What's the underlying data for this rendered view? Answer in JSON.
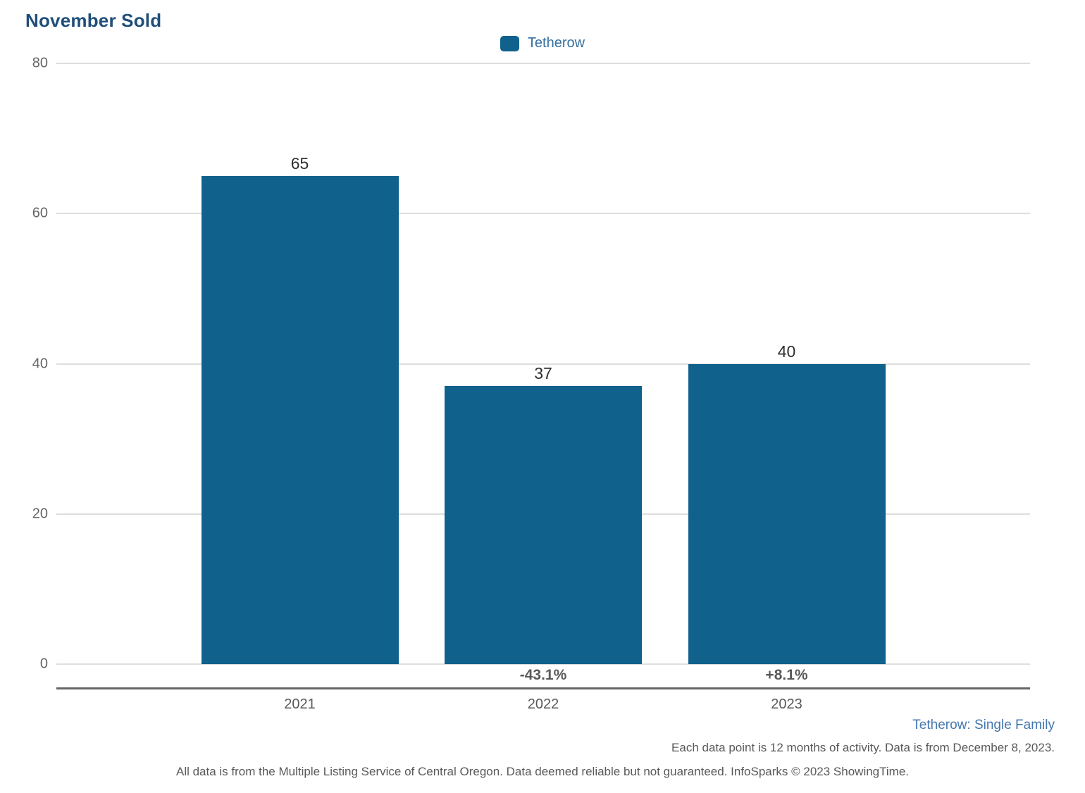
{
  "title": "November Sold",
  "legend": {
    "label": "Tetherow",
    "swatch_color": "#10618c"
  },
  "chart_data": {
    "type": "bar",
    "title": "November Sold",
    "categories": [
      "2021",
      "2022",
      "2023"
    ],
    "values": [
      65,
      37,
      40
    ],
    "value_labels": [
      "65",
      "37",
      "40"
    ],
    "pct_change_labels": [
      "",
      "-43.1%",
      "+8.1%"
    ],
    "series": [
      {
        "name": "Tetherow",
        "values": [
          65,
          37,
          40
        ]
      }
    ],
    "xlabel": "",
    "ylabel": "",
    "ylim": [
      0,
      80
    ],
    "yticks": [
      80,
      60,
      40,
      20,
      0
    ],
    "grid": "horizontal",
    "legend_position": "top-center",
    "bar_color": "#10618c"
  },
  "footer": {
    "series_note": "Tetherow: Single Family",
    "data_note": "Each data point is 12 months of activity. Data is from December 8, 2023.",
    "disclaimer": "All data is from the Multiple Listing Service of Central Oregon. Data deemed reliable but not guaranteed. InfoSparks © 2023 ShowingTime."
  },
  "colors": {
    "bar": "#10618c",
    "title_text": "#1f4e79",
    "legend_text": "#336fa0",
    "footer_note_text": "#4377b0",
    "grid_line": "#dedede",
    "axis_line": "#666666",
    "tick_text": "#666666",
    "value_text": "#2e2e2e",
    "pct_text": "#595959"
  }
}
